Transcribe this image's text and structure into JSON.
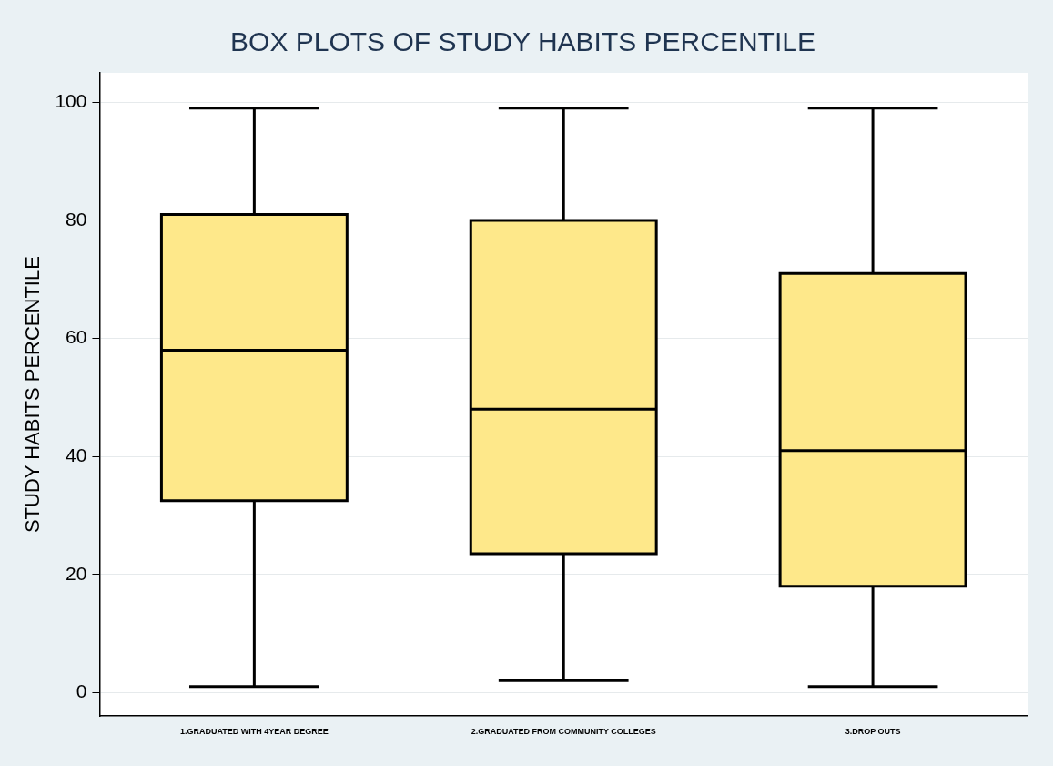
{
  "chart_data": {
    "type": "box",
    "title": "BOX PLOTS OF STUDY HABITS PERCENTILE",
    "ylabel": "STUDY HABITS PERCENTILE",
    "categories": [
      "1.GRADUATED WITH 4YEAR DEGREE",
      "2.GRADUATED FROM COMMUNITY COLLEGES",
      "3.DROP OUTS"
    ],
    "boxes": [
      {
        "low": 1,
        "q1": 32.5,
        "median": 58,
        "q3": 81,
        "high": 99
      },
      {
        "low": 2,
        "q1": 23.5,
        "median": 48,
        "q3": 80,
        "high": 99
      },
      {
        "low": 1,
        "q1": 18,
        "median": 41,
        "q3": 71,
        "high": 99
      }
    ],
    "color": "#fee88a",
    "ylim": [
      -4,
      105
    ],
    "yticks": [
      0,
      20,
      40,
      60,
      80,
      100
    ],
    "grid": "y",
    "legend": false
  }
}
